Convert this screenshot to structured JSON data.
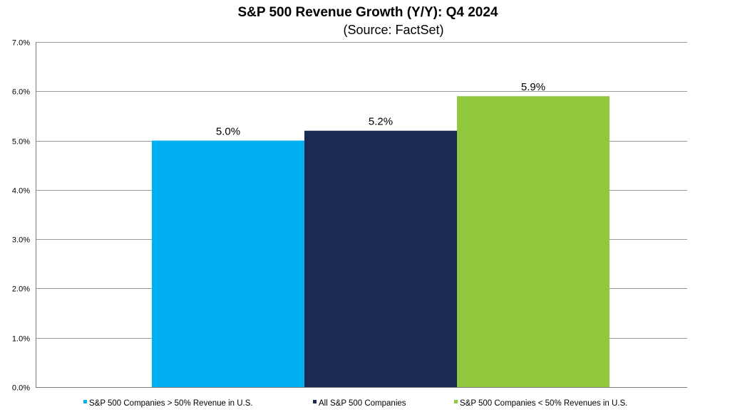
{
  "chart_data": {
    "type": "bar",
    "title": "S&P 500 Revenue Growth (Y/Y): Q4 2024",
    "subtitle": "(Source: FactSet)",
    "xlabel": "",
    "ylabel": "",
    "ylim": [
      0,
      7
    ],
    "y_ticks": [
      "0.0%",
      "1.0%",
      "2.0%",
      "3.0%",
      "4.0%",
      "5.0%",
      "6.0%",
      "7.0%"
    ],
    "grid": true,
    "legend_position": "bottom",
    "series": [
      {
        "name": "S&P 500 Companies > 50% Revenue in U.S.",
        "value": 5.0,
        "label": "5.0%",
        "color": "#00B0F0"
      },
      {
        "name": "All S&P 500 Companies",
        "value": 5.2,
        "label": "5.2%",
        "color": "#1B2A52"
      },
      {
        "name": "S&P 500 Companies < 50% Revenues in U.S.",
        "value": 5.9,
        "label": "5.9%",
        "color": "#92C83E"
      }
    ]
  }
}
